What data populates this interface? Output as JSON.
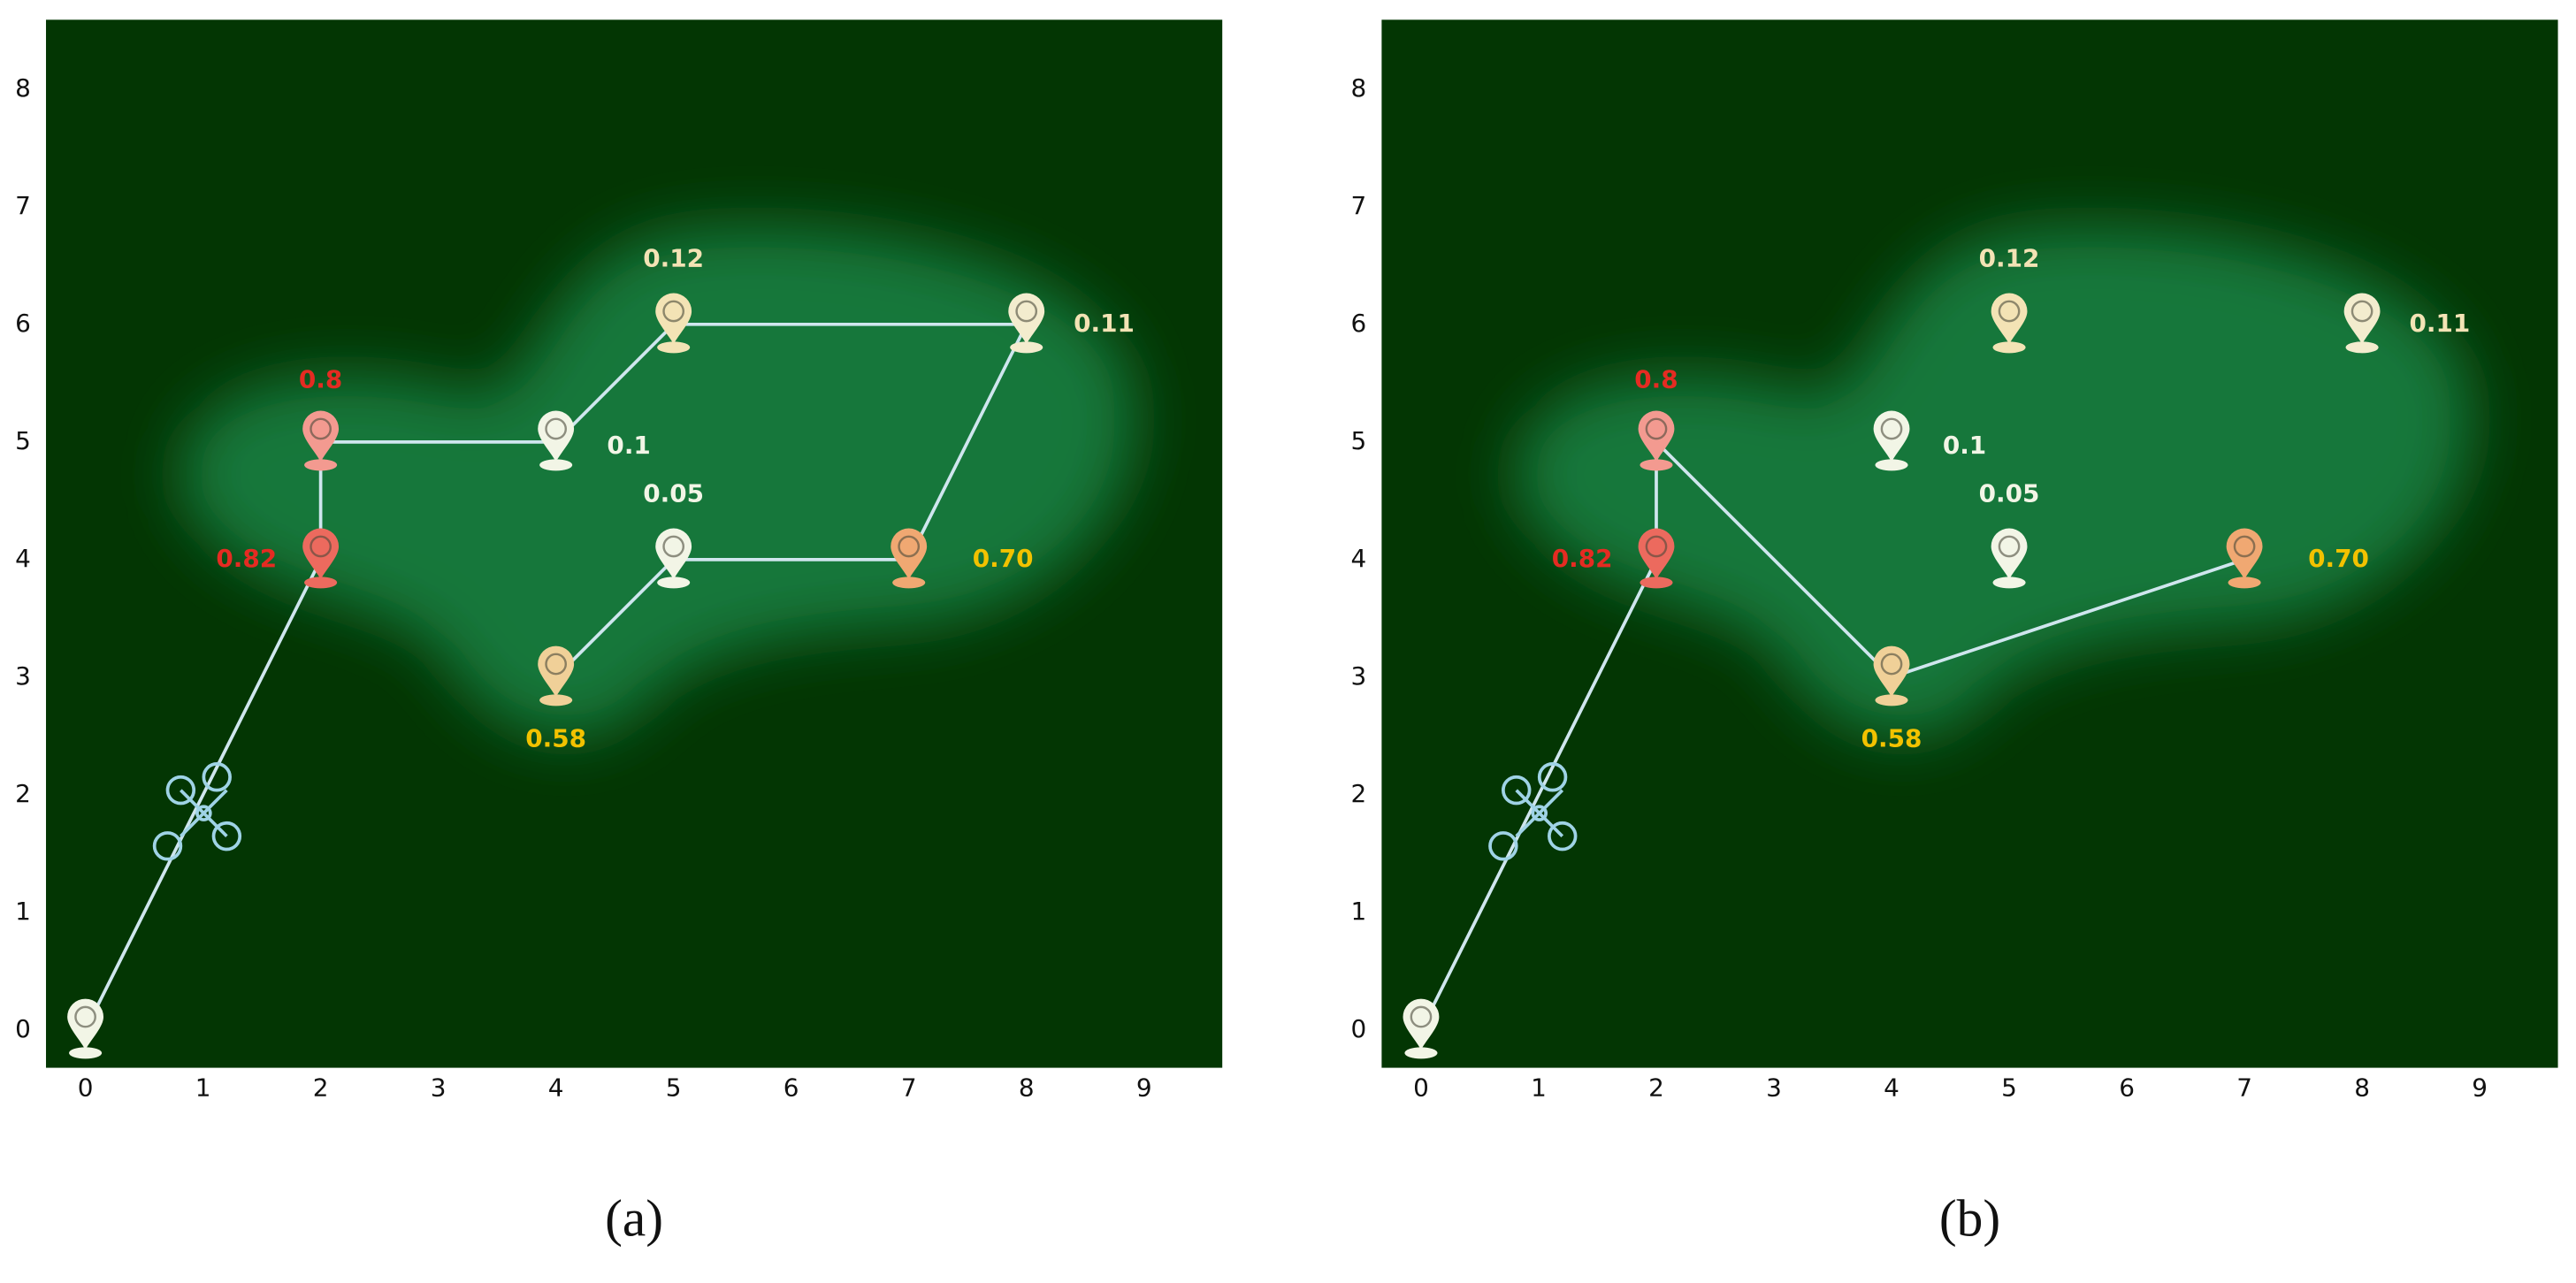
{
  "chart_data": [
    {
      "type": "route-map",
      "caption": "(a)",
      "xlim": [
        -0.335,
        9.665
      ],
      "ylim": [
        -0.321,
        8.59
      ],
      "xticks": [
        0,
        1,
        2,
        3,
        4,
        5,
        6,
        7,
        8,
        9
      ],
      "yticks": [
        0,
        1,
        2,
        3,
        4,
        5,
        6,
        7,
        8
      ],
      "x": [
        0,
        2,
        2,
        4,
        5,
        8,
        5,
        7,
        4
      ],
      "y": [
        0,
        5,
        4,
        5,
        6,
        6,
        4,
        4,
        3
      ],
      "values": [
        null,
        0.8,
        0.82,
        0.1,
        0.12,
        0.11,
        0.05,
        0.7,
        0.58
      ],
      "value_labels": [
        null,
        "0.8",
        "0.82",
        "0.1",
        "0.12",
        "0.11",
        "0.05",
        "0.70",
        "0.58"
      ],
      "route_x": [
        0,
        2,
        2,
        4,
        5,
        8,
        7,
        5,
        4
      ],
      "route_y": [
        0,
        4,
        5,
        5,
        6,
        6,
        4,
        4,
        3
      ],
      "route_color": "#cfe6ee"
    },
    {
      "type": "route-map",
      "caption": "(b)",
      "xlim": [
        -0.335,
        9.665
      ],
      "ylim": [
        -0.321,
        8.59
      ],
      "xticks": [
        0,
        1,
        2,
        3,
        4,
        5,
        6,
        7,
        8,
        9
      ],
      "yticks": [
        0,
        1,
        2,
        3,
        4,
        5,
        6,
        7,
        8
      ],
      "x": [
        0,
        2,
        2,
        4,
        5,
        8,
        5,
        7,
        4
      ],
      "y": [
        0,
        5,
        4,
        5,
        6,
        6,
        4,
        4,
        3
      ],
      "values": [
        null,
        0.8,
        0.82,
        0.1,
        0.12,
        0.11,
        0.05,
        0.7,
        0.58
      ],
      "value_labels": [
        null,
        "0.8",
        "0.82",
        "0.1",
        "0.12",
        "0.11",
        "0.05",
        "0.70",
        "0.58"
      ],
      "route_x": [
        0,
        2,
        2,
        4,
        7
      ],
      "route_y": [
        0,
        4,
        5,
        3,
        4
      ],
      "route_color": "#cfe6ee"
    }
  ]
}
